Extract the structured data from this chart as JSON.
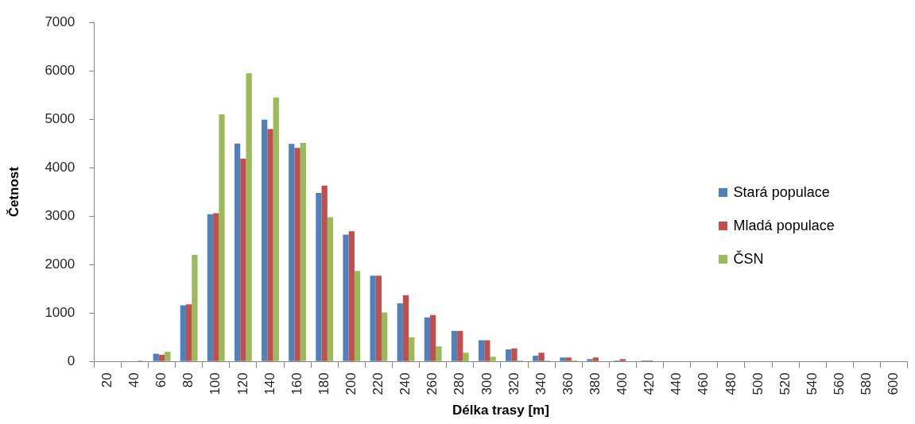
{
  "chart_data": {
    "type": "bar",
    "xlabel": "Délka trasy [m]",
    "ylabel": "Četnost",
    "categories": [
      "20",
      "40",
      "60",
      "80",
      "100",
      "120",
      "140",
      "160",
      "180",
      "200",
      "220",
      "240",
      "260",
      "280",
      "300",
      "320",
      "340",
      "360",
      "380",
      "400",
      "420",
      "440",
      "460",
      "480",
      "500",
      "520",
      "540",
      "560",
      "580",
      "600"
    ],
    "series": [
      {
        "name": "Stará populace",
        "color": "#4f81bd",
        "values": [
          0,
          0,
          160,
          1160,
          3040,
          4500,
          4990,
          4490,
          3480,
          2620,
          1770,
          1200,
          910,
          630,
          440,
          250,
          120,
          80,
          50,
          20,
          20,
          0,
          0,
          0,
          0,
          0,
          0,
          0,
          0,
          0
        ]
      },
      {
        "name": "Mladá populace",
        "color": "#c0504d",
        "values": [
          0,
          0,
          140,
          1180,
          3060,
          4190,
          4800,
          4410,
          3630,
          2690,
          1770,
          1370,
          960,
          630,
          440,
          270,
          180,
          80,
          80,
          50,
          20,
          0,
          0,
          0,
          0,
          0,
          0,
          0,
          0,
          0
        ]
      },
      {
        "name": "ČSN",
        "color": "#9bbb59",
        "values": [
          0,
          20,
          200,
          2200,
          5100,
          5950,
          5450,
          4510,
          2980,
          1870,
          1010,
          500,
          310,
          180,
          100,
          20,
          20,
          20,
          0,
          0,
          0,
          0,
          0,
          0,
          0,
          0,
          0,
          0,
          0,
          0
        ]
      }
    ],
    "ylim": [
      0,
      7000
    ],
    "yticks": [
      0,
      1000,
      2000,
      3000,
      4000,
      5000,
      6000,
      7000
    ],
    "legend": "right"
  }
}
